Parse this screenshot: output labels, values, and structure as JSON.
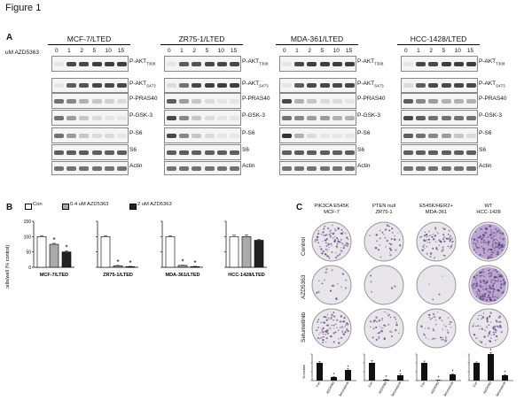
{
  "figure": {
    "title": "Figure 1",
    "panel_a": {
      "label": "A",
      "dose_prefix": "uM AZD5363",
      "doses": [
        "0",
        "1",
        "2",
        "5",
        "10",
        "15"
      ],
      "cell_lines": [
        {
          "name": "MCF-7/LTED",
          "rows": [
            "P-AKT",
            "P-AKT",
            "P-PRAS40",
            "P-GSK-3",
            "P-S6",
            "S6",
            "Actin"
          ],
          "subs": [
            "T308",
            "S473",
            "",
            "",
            "",
            "",
            ""
          ]
        },
        {
          "name": "ZR75-1/LTED",
          "rows": [
            "P-AKT",
            "P-AKT",
            "P-PRAS40",
            "P-GSK-3",
            "P-S6",
            "S6",
            "Actin"
          ],
          "subs": [
            "T308",
            "S473",
            "",
            "",
            "",
            "",
            ""
          ]
        },
        {
          "name": "MDA-361/LTED",
          "rows": [
            "P-AKT",
            "P-AKT",
            "P-PRAS40",
            "P-GSK-3",
            "P-S6",
            "S6",
            "Actin"
          ],
          "subs": [
            "T308",
            "S473",
            "",
            "",
            "",
            "",
            ""
          ]
        },
        {
          "name": "HCC-1428/LTED",
          "rows": [
            "P-AKT",
            "P-AKT",
            "P-PRAS40",
            "P-GSK-3",
            "P-S6",
            "S6",
            "Actin"
          ],
          "subs": [
            "T308",
            "S473",
            "",
            "",
            "",
            "",
            ""
          ]
        }
      ]
    },
    "panel_b": {
      "label": "B",
      "legend": [
        "Con",
        "0.4 uM AZD5363",
        "2 uM AZD5363"
      ],
      "ylabel": "cells/well (% control)",
      "yticks": [
        "0",
        "50",
        "100",
        "150"
      ],
      "sig_mark": "*"
    },
    "panel_c": {
      "label": "C",
      "columns": [
        {
          "genotype": "PIK3CA E545K",
          "name": "MCF-7"
        },
        {
          "genotype": "PTEN null",
          "name": "ZR75-1"
        },
        {
          "genotype": "E545K/HER2+",
          "name": "MDA-361"
        },
        {
          "genotype": "WT",
          "name": "HCC-1428"
        }
      ],
      "rows": [
        "Control",
        "AZD5363",
        "Selumetinib"
      ],
      "mini_ylabel": "% control",
      "mini_categories": [
        "Con",
        "AZD5363",
        "Selumetinib"
      ],
      "sig_mark": "*"
    }
  },
  "chart_data": [
    {
      "type": "bar",
      "title": "MCF-7/LTED",
      "categories": [
        "Con",
        "0.4 uM AZD5363",
        "2 uM AZD5363"
      ],
      "values": [
        100,
        75,
        50
      ],
      "errors": [
        2,
        3,
        3
      ],
      "significant": [
        false,
        true,
        true
      ],
      "ylabel": "cells/well (% control)",
      "ylim": [
        0,
        150
      ]
    },
    {
      "type": "bar",
      "title": "ZR75-1/LTED",
      "categories": [
        "Con",
        "0.4 uM AZD5363",
        "2 uM AZD5363"
      ],
      "values": [
        100,
        5,
        2
      ],
      "errors": [
        2,
        1,
        1
      ],
      "significant": [
        false,
        true,
        true
      ],
      "ylim": [
        0,
        150
      ]
    },
    {
      "type": "bar",
      "title": "MDA-361/LTED",
      "categories": [
        "Con",
        "0.4 uM AZD5363",
        "2 uM AZD5363"
      ],
      "values": [
        100,
        6,
        2
      ],
      "errors": [
        3,
        1,
        1
      ],
      "significant": [
        false,
        true,
        true
      ],
      "ylim": [
        0,
        150
      ]
    },
    {
      "type": "bar",
      "title": "HCC-1428/LTED",
      "categories": [
        "Con",
        "0.4 uM AZD5363",
        "2 uM AZD5363"
      ],
      "values": [
        100,
        100,
        88
      ],
      "errors": [
        5,
        6,
        3
      ],
      "significant": [
        false,
        false,
        false
      ],
      "ylim": [
        0,
        150
      ]
    },
    {
      "type": "bar",
      "title": "MCF-7",
      "categories": [
        "Con",
        "AZD5363",
        "Selumetinib"
      ],
      "values": [
        100,
        20,
        60
      ],
      "errors": [
        8,
        3,
        6
      ],
      "significant": [
        false,
        true,
        true
      ],
      "ylim": [
        0,
        150
      ]
    },
    {
      "type": "bar",
      "title": "ZR75-1",
      "categories": [
        "Con",
        "AZD5363",
        "Selumetinib"
      ],
      "values": [
        100,
        5,
        30
      ],
      "errors": [
        12,
        2,
        8
      ],
      "significant": [
        false,
        true,
        true
      ],
      "ylim": [
        0,
        150
      ]
    },
    {
      "type": "bar",
      "title": "MDA-361",
      "categories": [
        "Con",
        "AZD5363",
        "Selumetinib"
      ],
      "values": [
        100,
        3,
        35
      ],
      "errors": [
        10,
        1,
        4
      ],
      "significant": [
        false,
        true,
        true
      ],
      "ylim": [
        0,
        150
      ]
    },
    {
      "type": "bar",
      "title": "HCC-1428",
      "categories": [
        "Con",
        "AZD5363",
        "Selumetinib"
      ],
      "values": [
        100,
        150,
        30
      ],
      "errors": [
        5,
        8,
        4
      ],
      "significant": [
        false,
        true,
        true
      ],
      "ylim": [
        0,
        150
      ]
    }
  ]
}
